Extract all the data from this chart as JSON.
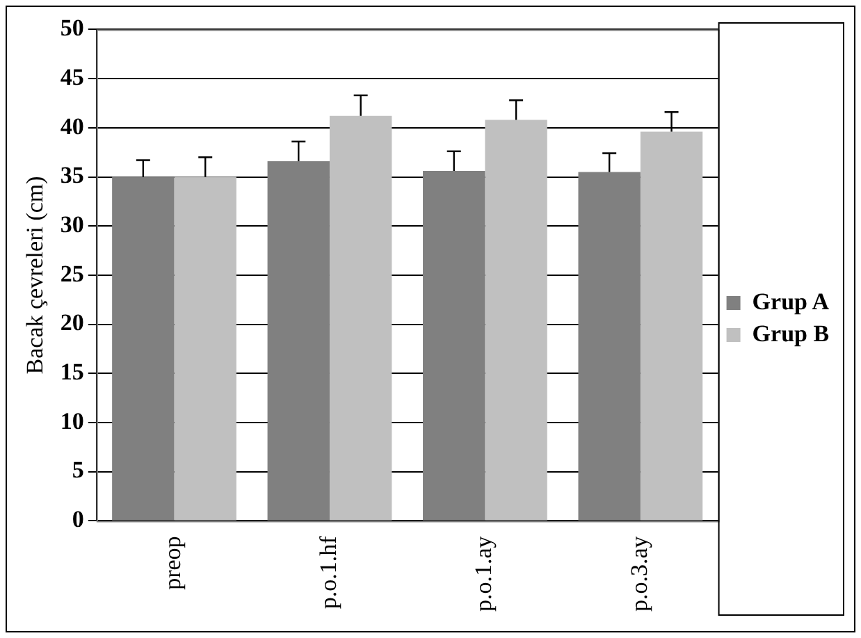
{
  "chart_data": {
    "type": "bar",
    "ylabel": "Bacak çevreleri (cm)",
    "categories": [
      "preop",
      "p.o.1.hf",
      "p.o.1.ay",
      "p.o.3.ay"
    ],
    "series": [
      {
        "name": "Grup A",
        "color": "#808080",
        "values": [
          35.0,
          36.6,
          35.6,
          35.5
        ],
        "errors": [
          [
            35.0,
            36.7
          ],
          [
            36.6,
            38.6
          ],
          [
            35.6,
            37.6
          ],
          [
            35.5,
            37.4
          ]
        ]
      },
      {
        "name": "Grup B",
        "color": "#c0c0c0",
        "values": [
          35.0,
          41.2,
          40.8,
          39.6
        ],
        "errors": [
          [
            35.0,
            37.0
          ],
          [
            41.2,
            43.3
          ],
          [
            40.8,
            42.8
          ],
          [
            39.6,
            41.6
          ]
        ]
      }
    ],
    "ylim": [
      0,
      50
    ],
    "yticks": [
      0,
      5,
      10,
      15,
      20,
      25,
      30,
      35,
      40,
      45,
      50
    ],
    "grid": "y",
    "legend": "right"
  }
}
